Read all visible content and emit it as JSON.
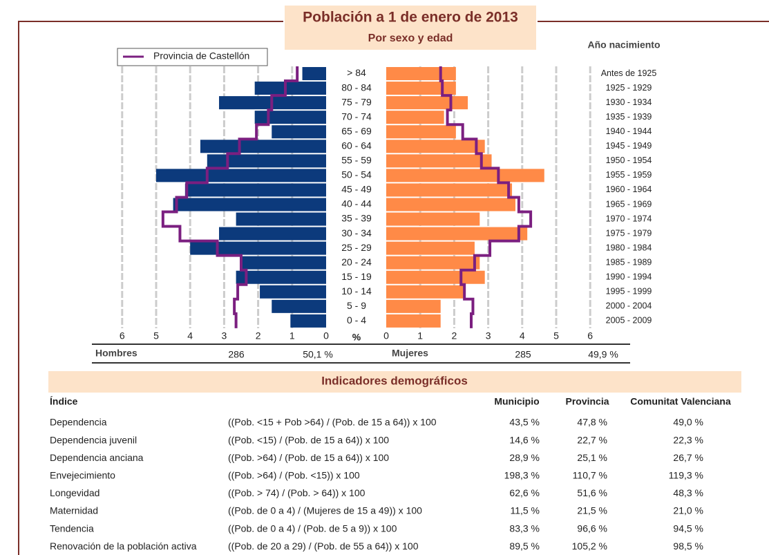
{
  "chart_data": {
    "type": "pyramid",
    "title": "Población a 1 de enero de 2013",
    "subtitle": "Por sexo y edad",
    "right_axis_title": "Año nacimiento",
    "xlabel": "%",
    "categories": [
      "> 84",
      "80 - 84",
      "75 - 79",
      "70 - 74",
      "65 - 69",
      "60 - 64",
      "55 - 59",
      "50 - 54",
      "45 - 49",
      "40 - 44",
      "35 - 39",
      "30 - 34",
      "25 - 29",
      "20 - 24",
      "15 - 19",
      "10 - 14",
      "5 - 9",
      "0 - 4"
    ],
    "birth_years": [
      "Antes de 1925",
      "1925 - 1929",
      "1930 - 1934",
      "1935 - 1939",
      "1940 - 1944",
      "1945 - 1949",
      "1950 - 1954",
      "1955 - 1959",
      "1960 - 1964",
      "1965 - 1969",
      "1970 - 1974",
      "1975 - 1979",
      "1980 - 1984",
      "1985 - 1989",
      "1990 - 1994",
      "1995 - 1999",
      "2000 - 2004",
      "2005 - 2009"
    ],
    "series": [
      {
        "name": "Hombres",
        "color": "#0c3a7c",
        "side": "left",
        "values": [
          0.7,
          2.1,
          3.15,
          2.1,
          1.6,
          3.7,
          3.5,
          5.0,
          4.15,
          4.5,
          2.65,
          3.15,
          4.0,
          2.5,
          2.65,
          1.95,
          1.6,
          1.05
        ]
      },
      {
        "name": "Mujeres",
        "color": "#ff8a47",
        "side": "right",
        "values": [
          2.05,
          2.05,
          2.4,
          1.7,
          2.05,
          2.9,
          3.1,
          4.65,
          3.7,
          3.8,
          2.75,
          4.15,
          2.6,
          2.75,
          2.9,
          2.3,
          1.6,
          1.6
        ]
      },
      {
        "name": "Provincia de Castellón",
        "color": "#7b1f80",
        "values_left": [
          0.85,
          1.2,
          1.6,
          1.7,
          2.05,
          2.55,
          2.9,
          3.5,
          4.1,
          4.4,
          4.8,
          4.3,
          3.2,
          2.5,
          2.35,
          2.6,
          2.7,
          2.65
        ],
        "values_right": [
          1.6,
          1.65,
          1.9,
          1.8,
          2.25,
          2.65,
          2.8,
          3.3,
          3.6,
          3.9,
          4.25,
          3.9,
          3.05,
          2.6,
          2.2,
          2.3,
          2.55,
          2.5
        ]
      }
    ],
    "xlim": [
      0,
      6
    ],
    "xticks": [
      0,
      1,
      2,
      3,
      4,
      5,
      6
    ],
    "grid": true,
    "summary": [
      {
        "count": 286,
        "percent": "50,1 %"
      },
      {
        "count": 285,
        "percent": "49,9 %"
      }
    ]
  },
  "indicators": {
    "title": "Indicadores demográficos",
    "columns": [
      "Índice",
      "Municipio",
      "Provincia",
      "Comunitat Valenciana"
    ],
    "rows": [
      [
        "Dependencia",
        "((Pob. <15 + Pob >64) / (Pob. de 15 a 64)) x 100",
        "43,5 %",
        "47,8 %",
        "49,0 %"
      ],
      [
        "Dependencia juvenil",
        "((Pob. <15) / (Pob. de 15 a 64)) x 100",
        "14,6 %",
        "22,7 %",
        "22,3 %"
      ],
      [
        "Dependencia anciana",
        "((Pob. >64) / (Pob. de 15 a 64)) x 100",
        "28,9 %",
        "25,1 %",
        "26,7 %"
      ],
      [
        "Envejecimiento",
        "((Pob. >64) / (Pob. <15)) x 100",
        "198,3 %",
        "110,7 %",
        "119,3 %"
      ],
      [
        "Longevidad",
        "((Pob. > 74) / (Pob. > 64)) x 100",
        "62,6 %",
        "51,6 %",
        "48,3 %"
      ],
      [
        "Maternidad",
        "((Pob. de 0 a 4) / (Mujeres de 15 a 49)) x 100",
        "11,5 %",
        "21,5 %",
        "21,0 %"
      ],
      [
        "Tendencia",
        "((Pob. de 0 a 4) / (Pob. de 5 a 9)) x 100",
        "83,3 %",
        "96,6 %",
        "94,5 %"
      ],
      [
        "Renovación de la población activa",
        "((Pob. de 20 a 29) / (Pob. de 55 a 64)) x 100",
        "89,5 %",
        "105,2 %",
        "98,5 %"
      ]
    ]
  }
}
